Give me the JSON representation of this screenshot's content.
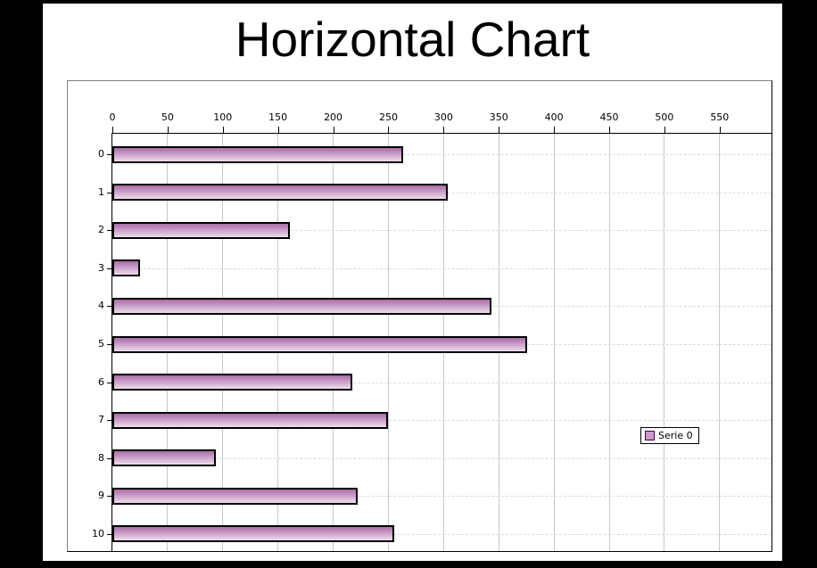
{
  "window": {
    "background": "#000000",
    "panel_background": "#ffffff"
  },
  "chart_data": {
    "type": "bar",
    "orientation": "horizontal",
    "title": "Horizontal Chart",
    "xlabel": "",
    "ylabel": "",
    "categories": [
      "0",
      "1",
      "2",
      "3",
      "4",
      "5",
      "6",
      "7",
      "8",
      "9",
      "10"
    ],
    "series": [
      {
        "name": "Serie 0",
        "values": [
          263,
          304,
          161,
          25,
          343,
          376,
          217,
          250,
          94,
          222,
          255
        ]
      }
    ],
    "x_ticks": [
      0,
      50,
      100,
      150,
      200,
      250,
      300,
      350,
      400,
      450,
      500,
      550
    ],
    "x_axis_max": 597,
    "grid": true,
    "row_guides": "dashed",
    "legend_position": "right-inside",
    "colors": {
      "bar_gradient_top": "#aa6ca8",
      "bar_gradient_bottom": "#eedcec",
      "bar_border": "#000000",
      "legend_swatch_fill": "#cc99cc",
      "legend_swatch_border": "#440044",
      "gridline": "#c8c8c8",
      "row_dash": "#dadada",
      "axis": "#000000",
      "outer_border_light": "#808080",
      "outer_border_dark": "#000000"
    }
  }
}
